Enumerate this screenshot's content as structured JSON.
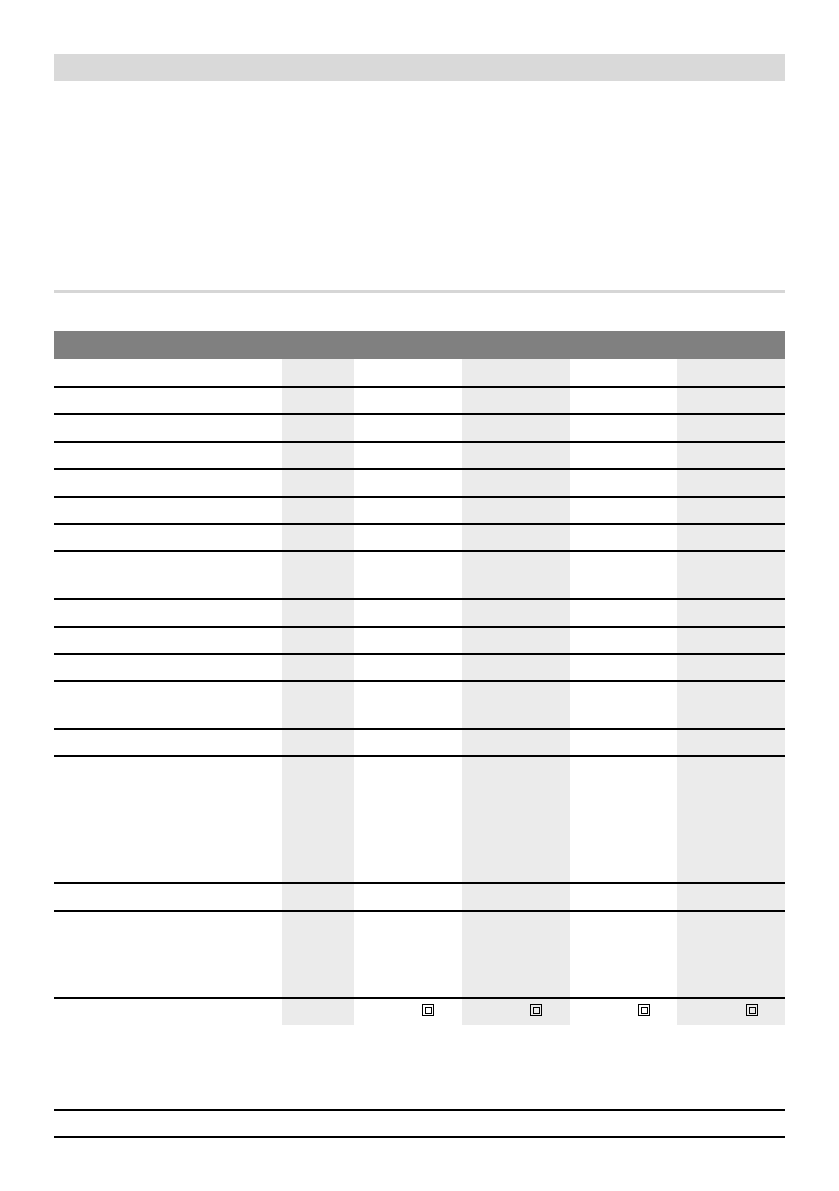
{
  "colors": {
    "top_bar": "#d9d9d9",
    "table_header": "#808080",
    "shaded_column": "#ebebeb",
    "rule": "#000000"
  },
  "table": {
    "row_count": 16,
    "column_count": 6,
    "last_row_icons": [
      "double-insulation-icon",
      "double-insulation-icon",
      "double-insulation-icon",
      "double-insulation-icon"
    ]
  }
}
